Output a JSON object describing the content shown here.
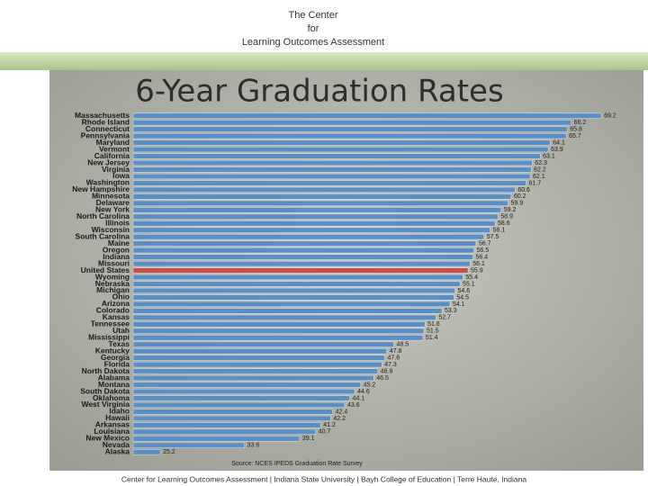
{
  "header": {
    "lines": [
      "The Center",
      "for",
      "Learning Outcomes Assessment"
    ]
  },
  "footer": "Center for Learning Outcomes Assessment | Indiana State University | Bayh College of Education | Terre Haute, Indiana",
  "chart_data": {
    "type": "hbar",
    "title": "6-Year Graduation Rates",
    "source": "Source: NCES IPEDS Graduation Rate Survey",
    "categories": [
      "Massachusetts",
      "Rhode Island",
      "Connecticut",
      "Pennsylvania",
      "Maryland",
      "Vermont",
      "California",
      "New Jersey",
      "Virginia",
      "Iowa",
      "Washington",
      "New Hampshire",
      "Minnesota",
      "Delaware",
      "New York",
      "North Carolina",
      "Illinois",
      "Wisconsin",
      "South Carolina",
      "Maine",
      "Oregon",
      "Indiana",
      "Missouri",
      "United States",
      "Wyoming",
      "Nebraska",
      "Michigan",
      "Ohio",
      "Arizona",
      "Colorado",
      "Kansas",
      "Tennessee",
      "Utah",
      "Mississippi",
      "Texas",
      "Kentucky",
      "Georgia",
      "Florida",
      "North Dakota",
      "Alabama",
      "Montana",
      "South Dakota",
      "Oklahoma",
      "West Virginia",
      "Idaho",
      "Hawaii",
      "Arkansas",
      "Louisiana",
      "New Mexico",
      "Nevada",
      "Alaska"
    ],
    "values": [
      69.2,
      66.2,
      65.8,
      65.7,
      64.1,
      63.9,
      63.1,
      62.3,
      62.2,
      62.1,
      61.7,
      60.6,
      60.2,
      59.9,
      59.2,
      58.9,
      58.6,
      58.1,
      57.5,
      56.7,
      56.5,
      56.4,
      56.1,
      55.9,
      55.4,
      55.1,
      54.6,
      54.5,
      54.1,
      53.3,
      52.7,
      51.6,
      51.5,
      51.4,
      48.5,
      47.8,
      47.6,
      47.3,
      46.9,
      46.5,
      45.2,
      44.6,
      44.1,
      43.6,
      42.4,
      42.2,
      41.2,
      40.7,
      39.1,
      33.6,
      25.2
    ],
    "color": "#5b8ec2",
    "highlight": {
      "index": 23,
      "color": "#c8504b"
    },
    "xlim": [
      22.5,
      70
    ]
  }
}
